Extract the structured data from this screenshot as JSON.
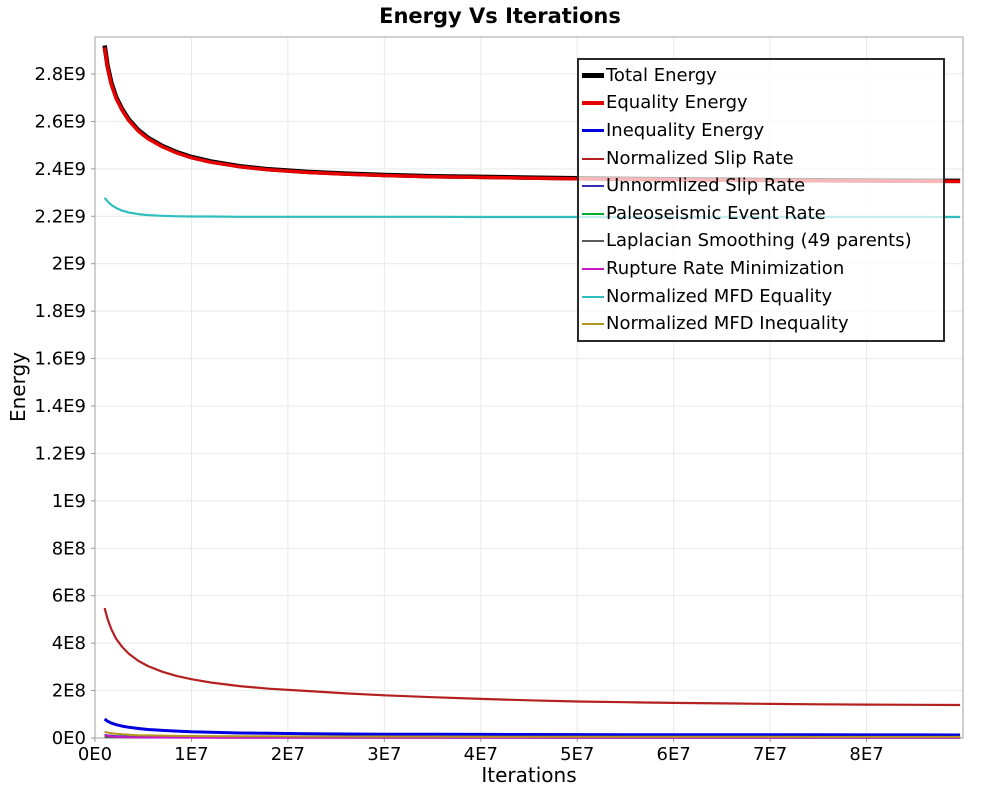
{
  "chart_data": {
    "type": "line",
    "title": "Energy Vs Iterations",
    "xlabel": "Iterations",
    "ylabel": "Energy",
    "grid": true,
    "legend_position": "top-right",
    "x_unit": "iterations x1e7",
    "y_unit": "energy x1e9",
    "xlim": [
      0,
      9.0
    ],
    "ylim": [
      0,
      2.956
    ],
    "x_ticks": {
      "values": [
        0,
        1,
        2,
        3,
        4,
        5,
        6,
        7,
        8
      ],
      "labels": [
        "0E0",
        "1E7",
        "2E7",
        "3E7",
        "4E7",
        "5E7",
        "6E7",
        "7E7",
        "8E7"
      ]
    },
    "y_ticks": {
      "values": [
        0,
        0.2,
        0.4,
        0.6,
        0.8,
        1.0,
        1.2,
        1.4,
        1.6,
        1.8,
        2.0,
        2.2,
        2.4,
        2.6,
        2.8
      ],
      "labels": [
        "0E0",
        "2E8",
        "4E8",
        "6E8",
        "8E8",
        "1E9",
        "1.2E9",
        "1.4E9",
        "1.6E9",
        "1.8E9",
        "2E9",
        "2.2E9",
        "2.4E9",
        "2.6E9",
        "2.8E9"
      ]
    },
    "colors": {
      "grid": "#e9e9e9",
      "plot_border": "#b0b0b0",
      "tick": "#999999",
      "text": "#000000"
    },
    "x": [
      0.1,
      0.13,
      0.17,
      0.22,
      0.28,
      0.35,
      0.45,
      0.55,
      0.7,
      0.85,
      1.0,
      1.2,
      1.5,
      1.8,
      2.2,
      2.6,
      3.0,
      3.5,
      4.0,
      4.5,
      5.0,
      5.5,
      6.0,
      6.5,
      7.0,
      7.5,
      8.0,
      8.5,
      8.97
    ],
    "series": [
      {
        "name": "Total Energy",
        "color": "#000000",
        "line_width": 4.5,
        "values": [
          2.92,
          2.836,
          2.762,
          2.702,
          2.653,
          2.608,
          2.563,
          2.531,
          2.496,
          2.47,
          2.45,
          2.431,
          2.411,
          2.398,
          2.387,
          2.38,
          2.374,
          2.369,
          2.366,
          2.363,
          2.36,
          2.358,
          2.356,
          2.355,
          2.353,
          2.352,
          2.351,
          2.35,
          2.349
        ]
      },
      {
        "name": "Equality Energy",
        "color": "#e60000",
        "line_width": 3.5,
        "values": [
          2.912,
          2.829,
          2.756,
          2.697,
          2.648,
          2.604,
          2.559,
          2.527,
          2.493,
          2.467,
          2.447,
          2.428,
          2.409,
          2.396,
          2.385,
          2.378,
          2.372,
          2.367,
          2.364,
          2.361,
          2.358,
          2.356,
          2.354,
          2.353,
          2.351,
          2.35,
          2.349,
          2.348,
          2.347
        ]
      },
      {
        "name": "Inequality Energy",
        "color": "#0000e0",
        "line_width": 3,
        "values": [
          0.08,
          0.071,
          0.063,
          0.056,
          0.05,
          0.045,
          0.04,
          0.036,
          0.032,
          0.029,
          0.026,
          0.024,
          0.021,
          0.02,
          0.018,
          0.017,
          0.016,
          0.0155,
          0.015,
          0.0147,
          0.0144,
          0.0141,
          0.0139,
          0.0137,
          0.0135,
          0.0133,
          0.0131,
          0.0129,
          0.0127
        ]
      },
      {
        "name": "Normalized Slip Rate",
        "color": "#b42020",
        "line_width": 2.2,
        "values": [
          0.548,
          0.503,
          0.458,
          0.418,
          0.385,
          0.355,
          0.325,
          0.303,
          0.279,
          0.261,
          0.248,
          0.234,
          0.219,
          0.208,
          0.198,
          0.188,
          0.18,
          0.172,
          0.165,
          0.159,
          0.154,
          0.151,
          0.148,
          0.146,
          0.144,
          0.142,
          0.141,
          0.14,
          0.139
        ]
      },
      {
        "name": "Unnormlized Slip Rate",
        "color": "#3030b0",
        "line_width": 2,
        "values": [
          0.013,
          0.011,
          0.0095,
          0.008,
          0.007,
          0.006,
          0.0053,
          0.0048,
          0.0042,
          0.0038,
          0.0035,
          0.0032,
          0.0029,
          0.0027,
          0.0025,
          0.0024,
          0.0023,
          0.0022,
          0.0021,
          0.0021,
          0.002,
          0.002,
          0.002,
          0.002,
          0.0019,
          0.0019,
          0.0019,
          0.0019,
          0.0019
        ]
      },
      {
        "name": "Paleoseismic Event Rate",
        "color": "#00ab2e",
        "line_width": 2,
        "values": [
          0.006,
          0.0055,
          0.005,
          0.0045,
          0.004,
          0.0037,
          0.0033,
          0.003,
          0.0027,
          0.0025,
          0.0024,
          0.0022,
          0.0021,
          0.002,
          0.0019,
          0.0019,
          0.0018,
          0.0018,
          0.0017,
          0.0017,
          0.0017,
          0.0016,
          0.0016,
          0.0016,
          0.0016,
          0.0015,
          0.0015,
          0.0015,
          0.0015
        ]
      },
      {
        "name": "Laplacian Smoothing (49 parents)",
        "color": "#5a5a5a",
        "line_width": 2,
        "values": [
          0.004,
          0.0038,
          0.0035,
          0.0033,
          0.003,
          0.0028,
          0.0026,
          0.0024,
          0.0022,
          0.0021,
          0.002,
          0.0019,
          0.0018,
          0.0017,
          0.0017,
          0.0016,
          0.0016,
          0.0015,
          0.0015,
          0.0015,
          0.0014,
          0.0014,
          0.0014,
          0.0014,
          0.0013,
          0.0013,
          0.0013,
          0.0013,
          0.0013
        ]
      },
      {
        "name": "Rupture Rate Minimization",
        "color": "#c816c8",
        "line_width": 2,
        "values": [
          0.014,
          0.01,
          0.007,
          0.005,
          0.004,
          0.0032,
          0.0026,
          0.0022,
          0.0019,
          0.0017,
          0.0016,
          0.0014,
          0.0013,
          0.0012,
          0.0012,
          0.0011,
          0.0011,
          0.0011,
          0.001,
          0.001,
          0.001,
          0.001,
          0.001,
          0.0009,
          0.0009,
          0.0009,
          0.0009,
          0.0009,
          0.0009
        ]
      },
      {
        "name": "Normalized MFD Equality",
        "color": "#2fbdbd",
        "line_width": 2.2,
        "values": [
          2.278,
          2.263,
          2.248,
          2.235,
          2.224,
          2.216,
          2.209,
          2.205,
          2.202,
          2.2,
          2.199,
          2.199,
          2.198,
          2.198,
          2.198,
          2.198,
          2.198,
          2.198,
          2.197,
          2.197,
          2.197,
          2.197,
          2.197,
          2.197,
          2.197,
          2.197,
          2.197,
          2.197,
          2.197
        ]
      },
      {
        "name": "Normalized MFD Inequality",
        "color": "#b4961e",
        "line_width": 2,
        "values": [
          0.026,
          0.023,
          0.02,
          0.018,
          0.016,
          0.014,
          0.012,
          0.011,
          0.01,
          0.009,
          0.0085,
          0.008,
          0.0075,
          0.007,
          0.0065,
          0.0062,
          0.006,
          0.0058,
          0.0056,
          0.0055,
          0.0053,
          0.0052,
          0.0051,
          0.005,
          0.0049,
          0.0048,
          0.0047,
          0.0046,
          0.0045
        ]
      }
    ]
  }
}
